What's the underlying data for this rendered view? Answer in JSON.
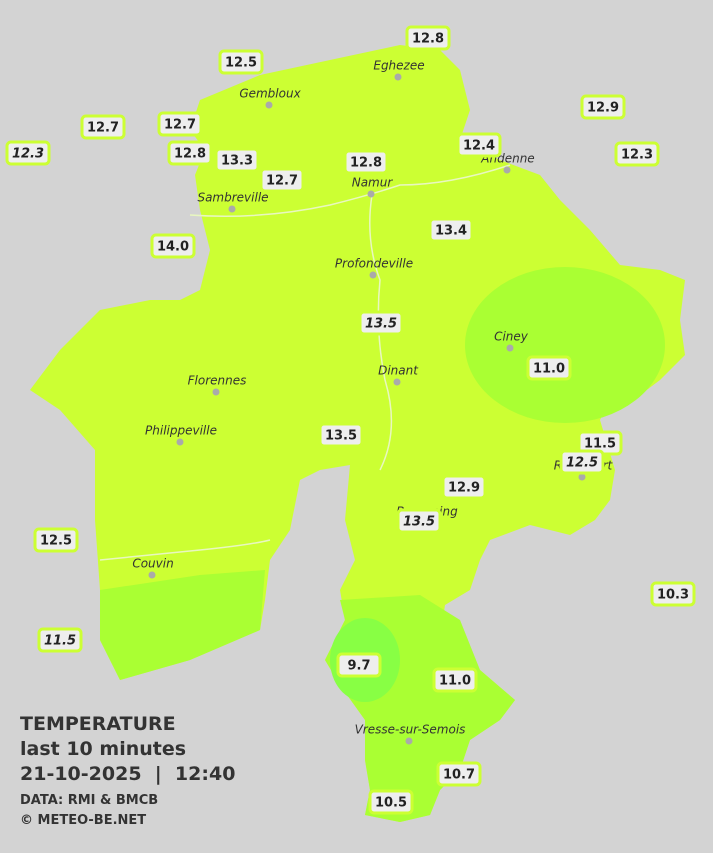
{
  "stations": [
    {
      "label": "12.8",
      "italic": false
    },
    {
      "label": "12.5",
      "italic": false
    },
    {
      "label": "12.9",
      "italic": false
    },
    {
      "label": "12.7",
      "italic": false
    },
    {
      "label": "12.7",
      "italic": false
    },
    {
      "label": "12.3",
      "italic": true
    },
    {
      "label": "12.8",
      "italic": false
    },
    {
      "label": "13.3",
      "italic": false
    },
    {
      "label": "12.4",
      "italic": false
    },
    {
      "label": "12.3",
      "italic": false
    },
    {
      "label": "12.8",
      "italic": false
    },
    {
      "label": "12.7",
      "italic": false
    },
    {
      "label": "13.4",
      "italic": false
    },
    {
      "label": "14.0",
      "italic": false
    },
    {
      "label": "13.5",
      "italic": true
    },
    {
      "label": "11.0",
      "italic": false
    },
    {
      "label": "13.5",
      "italic": false
    },
    {
      "label": "11.5",
      "italic": false
    },
    {
      "label": "12.5",
      "italic": true
    },
    {
      "label": "12.9",
      "italic": false
    },
    {
      "label": "13.5",
      "italic": true
    },
    {
      "label": "12.5",
      "italic": false
    },
    {
      "label": "10.3",
      "italic": false
    },
    {
      "label": "11.5",
      "italic": true
    },
    {
      "label": "9.7",
      "italic": false
    },
    {
      "label": "11.0",
      "italic": false
    },
    {
      "label": "10.7",
      "italic": false
    },
    {
      "label": "10.5",
      "italic": false
    }
  ],
  "towns": [
    "Eghezee",
    "Gembloux",
    "Andenne",
    "Namur",
    "Sambreville",
    "Profondeville",
    "Ciney",
    "Dinant",
    "Florennes",
    "Philippeville",
    "Rochefort",
    "Beauraing",
    "Couvin",
    "Vresse-sur-Semois"
  ],
  "legend": {
    "title": "TEMPERATURE",
    "subtitle": "last 10 minutes",
    "datetime": "21-10-2025  |  12:40",
    "source": "DATA: RMI & BMCB",
    "credit": "© METEO-BE.NET"
  }
}
